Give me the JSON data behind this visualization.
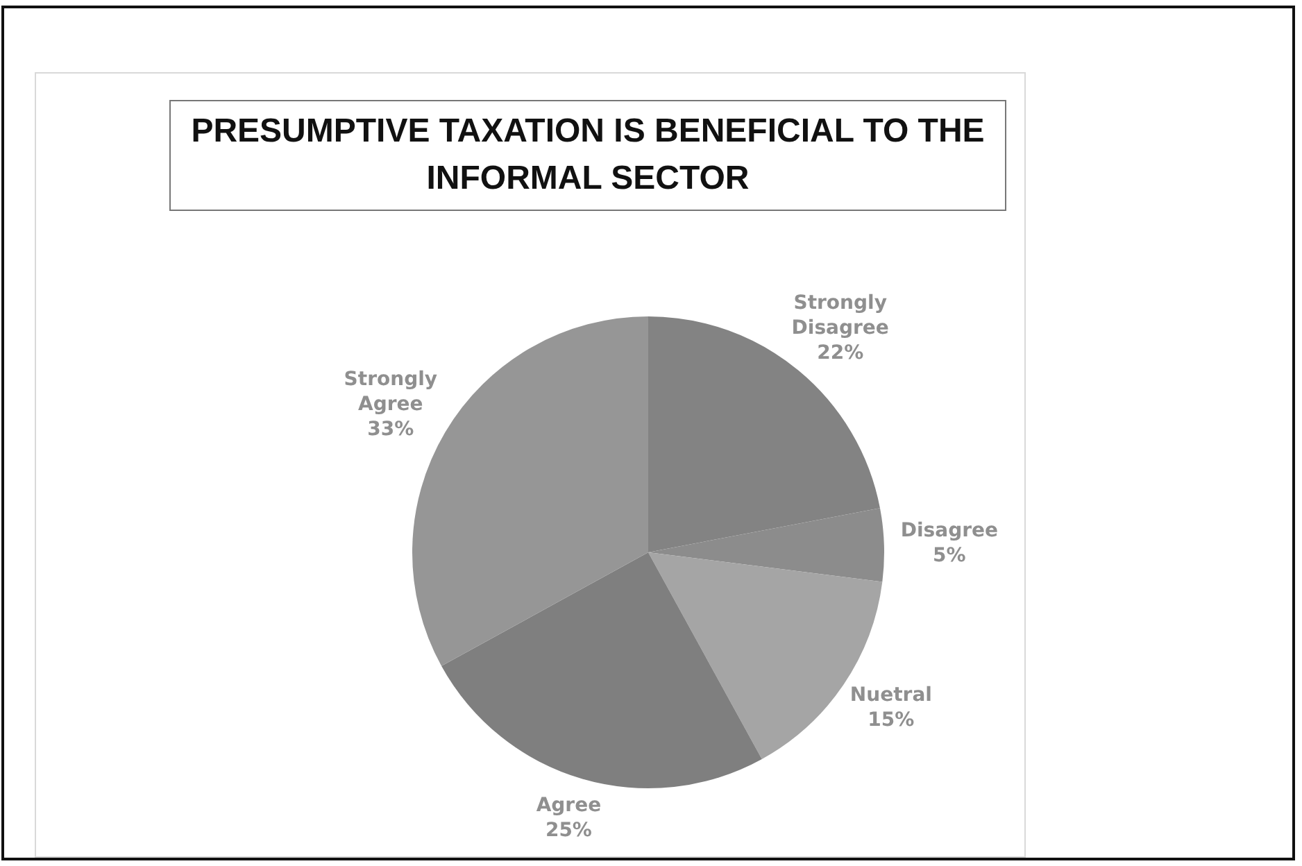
{
  "chart_data": {
    "type": "pie",
    "title": "PRESUMPTIVE TAXATION IS BENEFICIAL TO THE INFORMAL SECTOR",
    "categories": [
      "Strongly Disagree",
      "Disagree",
      "Nuetral",
      "Agree",
      "Strongly Agree"
    ],
    "values": [
      22,
      5,
      15,
      25,
      33
    ],
    "colors": [
      "#838383",
      "#8c8c8c",
      "#a5a5a5",
      "#7f7f7f",
      "#969696"
    ],
    "value_labels": [
      "22%",
      "5%",
      "15%",
      "25%",
      "33%"
    ],
    "legend": false
  }
}
